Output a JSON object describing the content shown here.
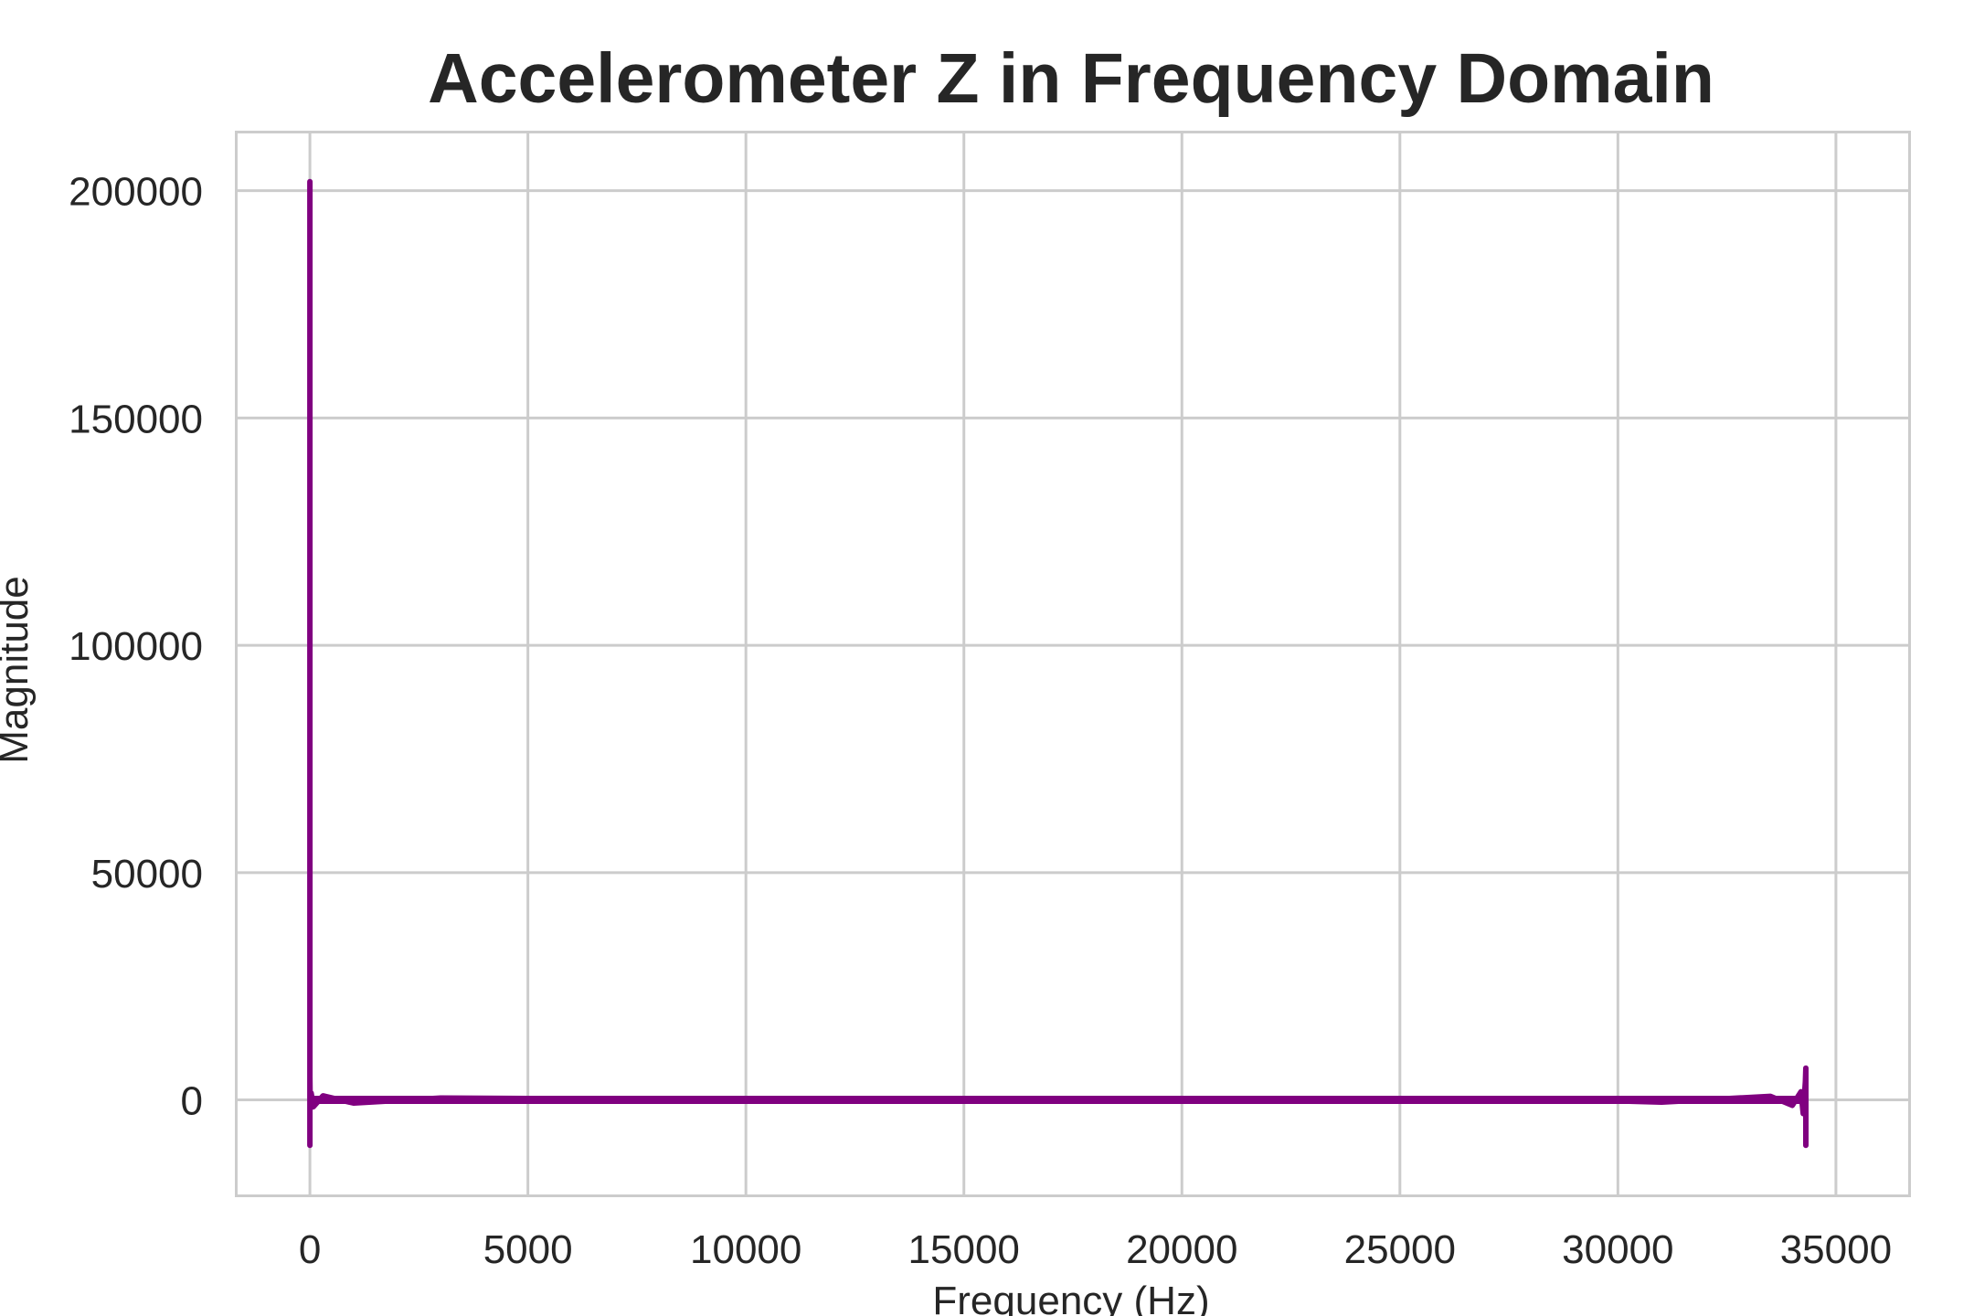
{
  "chart_data": {
    "type": "line",
    "title": "Accelerometer Z in Frequency Domain",
    "xlabel": "Frequency (Hz)",
    "ylabel": "Magnitude",
    "xlim": [
      -1700,
      36700
    ],
    "ylim": [
      -21000,
      213000
    ],
    "xticks": [
      0,
      5000,
      10000,
      15000,
      20000,
      25000,
      30000,
      35000
    ],
    "yticks": [
      0,
      50000,
      100000,
      150000,
      200000
    ],
    "grid": true,
    "legend": "none",
    "series": [
      {
        "color": "#800080",
        "x": [
          0,
          0,
          0,
          0,
          8,
          30,
          80,
          300,
          1000,
          3000,
          6000,
          10000,
          15000,
          20000,
          25000,
          28000,
          31000,
          33500,
          34000,
          34200,
          34250,
          34300,
          34310,
          34310,
          34310,
          34310
        ],
        "y": [
          0,
          202000,
          -10000,
          5000,
          -2000,
          1500,
          -1500,
          900,
          -700,
          400,
          250,
          150,
          100,
          100,
          150,
          300,
          -500,
          800,
          -1200,
          1800,
          -3000,
          4000,
          7000,
          -10000,
          7000,
          0
        ]
      }
    ]
  }
}
